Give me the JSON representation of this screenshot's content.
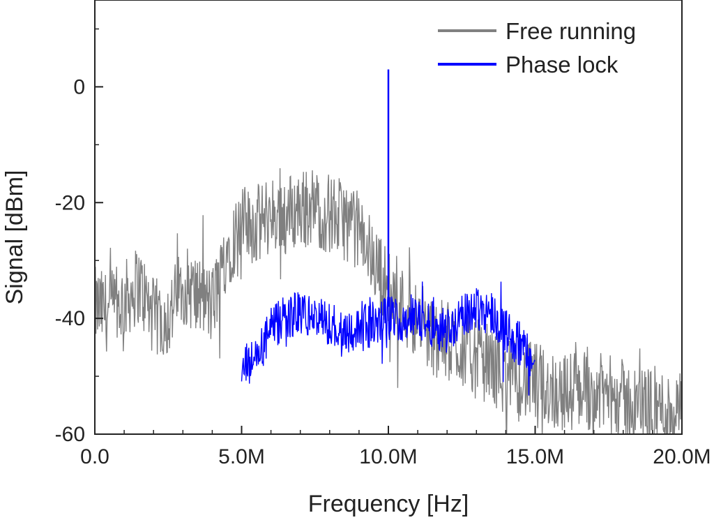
{
  "chart_data": {
    "type": "line",
    "title": "",
    "xlabel": "Frequency [Hz]",
    "ylabel": "Signal [dBm]",
    "xlim": [
      0,
      20000000
    ],
    "ylim": [
      -60,
      15
    ],
    "xticks": [
      {
        "value": 0,
        "label": "0.0"
      },
      {
        "value": 5000000,
        "label": "5.0M"
      },
      {
        "value": 10000000,
        "label": "10.0M"
      },
      {
        "value": 15000000,
        "label": "15.0M"
      },
      {
        "value": 20000000,
        "label": "20.0M"
      }
    ],
    "yticks": [
      {
        "value": 0,
        "label": "0"
      },
      {
        "value": -20,
        "label": "-20"
      },
      {
        "value": -40,
        "label": "-40"
      },
      {
        "value": -60,
        "label": "-60"
      }
    ],
    "grid": false,
    "legend_position": "top-right",
    "series": [
      {
        "name": "Free running",
        "color": "#808080",
        "x": [
          0,
          500000,
          1000000,
          1500000,
          2000000,
          2500000,
          3000000,
          3500000,
          4000000,
          4500000,
          5000000,
          5500000,
          6000000,
          6500000,
          7000000,
          7500000,
          8000000,
          8500000,
          9000000,
          9500000,
          10000000,
          10500000,
          11000000,
          11500000,
          12000000,
          12500000,
          13000000,
          13500000,
          14000000,
          14500000,
          15000000,
          15500000,
          16000000,
          16500000,
          17000000,
          17500000,
          18000000,
          18500000,
          19000000,
          19500000,
          20000000
        ],
        "y": [
          -38,
          -39,
          -37,
          -34,
          -40,
          -40,
          -34,
          -36,
          -38,
          -28,
          -24,
          -24,
          -22,
          -22,
          -21,
          -21,
          -22,
          -23,
          -25,
          -30,
          -35,
          -38,
          -40,
          -43,
          -44,
          -45,
          -47,
          -48,
          -50,
          -51,
          -51,
          -52,
          -53,
          -52,
          -53,
          -53,
          -54,
          -55,
          -55,
          -56,
          -56
        ],
        "noise": 7
      },
      {
        "name": "Phase lock",
        "color": "#0000ff",
        "x": [
          5000000,
          5500000,
          6000000,
          6500000,
          7000000,
          7500000,
          8000000,
          8500000,
          9000000,
          9500000,
          10000000,
          10500000,
          11000000,
          11500000,
          12000000,
          12500000,
          13000000,
          13500000,
          14000000,
          14500000,
          15000000
        ],
        "y": [
          -49,
          -47,
          -42,
          -40,
          -39,
          -40,
          -41,
          -42,
          -42,
          -41,
          -40,
          -40,
          -40,
          -41,
          -42,
          -40,
          -38,
          -39,
          -42,
          -45,
          -48
        ],
        "noise": 4,
        "peak": {
          "x": 10000000,
          "y": 3
        }
      }
    ]
  }
}
